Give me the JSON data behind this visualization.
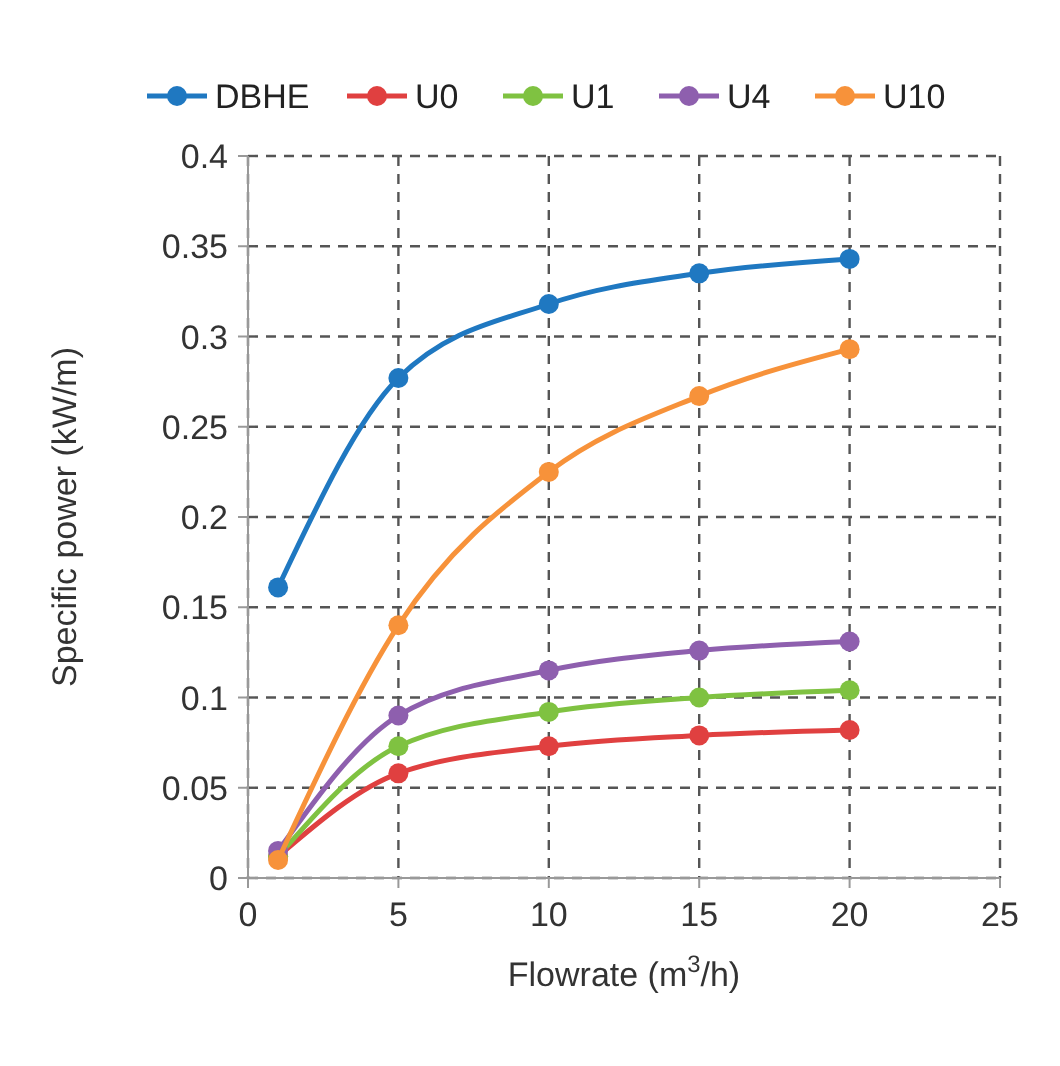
{
  "chart_data": {
    "type": "line",
    "xlabel": "Flowrate (m$^{3}$/h)",
    "ylabel": "Specific power (kW/m)",
    "x": [
      1,
      5,
      10,
      15,
      20
    ],
    "xlim": [
      0,
      25
    ],
    "xticks": [
      0,
      5,
      10,
      15,
      20,
      25
    ],
    "ylim": [
      0,
      0.4
    ],
    "yticks": [
      0,
      0.05,
      0.1,
      0.15,
      0.2,
      0.25,
      0.3,
      0.35,
      0.4
    ],
    "grid": true,
    "legend": "top",
    "marker": "circle",
    "series": [
      {
        "name": "DBHE",
        "color": "#1f78c1",
        "values": [
          0.161,
          0.277,
          0.318,
          0.335,
          0.343
        ]
      },
      {
        "name": "U0",
        "color": "#e04040",
        "values": [
          0.012,
          0.058,
          0.073,
          0.079,
          0.082
        ]
      },
      {
        "name": "U1",
        "color": "#7fc241",
        "values": [
          0.012,
          0.073,
          0.092,
          0.1,
          0.104
        ]
      },
      {
        "name": "U4",
        "color": "#8e5fae",
        "values": [
          0.015,
          0.09,
          0.115,
          0.126,
          0.131
        ]
      },
      {
        "name": "U10",
        "color": "#f7923a",
        "values": [
          0.01,
          0.14,
          0.225,
          0.267,
          0.293
        ]
      }
    ]
  }
}
